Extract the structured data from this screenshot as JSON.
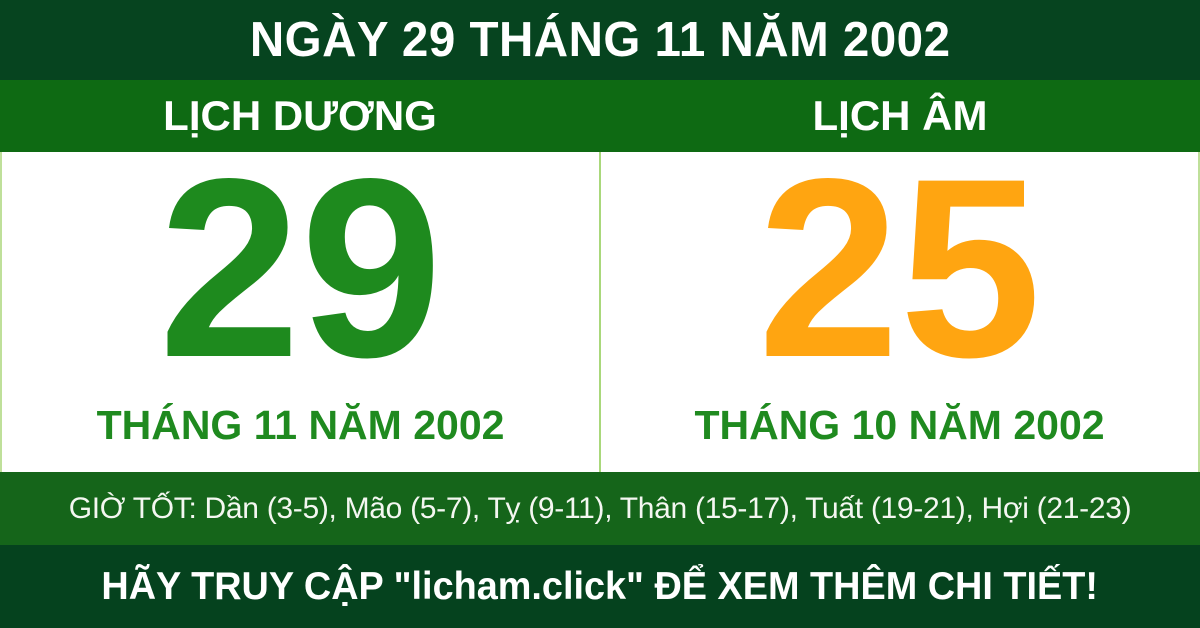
{
  "header": {
    "title": "NGÀY 29 THÁNG 11 NĂM 2002"
  },
  "solar": {
    "heading": "LỊCH DƯƠNG",
    "day": "29",
    "month_year": "THÁNG 11 NĂM 2002"
  },
  "lunar": {
    "heading": "LỊCH ÂM",
    "day": "25",
    "month_year": "THÁNG 10 NĂM 2002"
  },
  "good_hours": {
    "text": "GIỜ TỐT: Dần (3-5), Mão (5-7), Tỵ (9-11), Thân (15-17), Tuất (19-21), Hợi (21-23)"
  },
  "footer": {
    "text": "HÃY TRUY CẬP \"licham.click\" ĐỂ XEM THÊM CHI TIẾT!"
  },
  "colors": {
    "header_bg": "#06441f",
    "band_bg": "#0e6a13",
    "panel_bg": "#ffffff",
    "panel_divider": "#a9d87b",
    "solar_accent": "#1e8a1e",
    "lunar_accent": "#ffa511",
    "month_label": "#1f8a1f",
    "hours_bg": "#15651a",
    "footer_bg": "#05421e",
    "text_light": "#ffffff"
  }
}
